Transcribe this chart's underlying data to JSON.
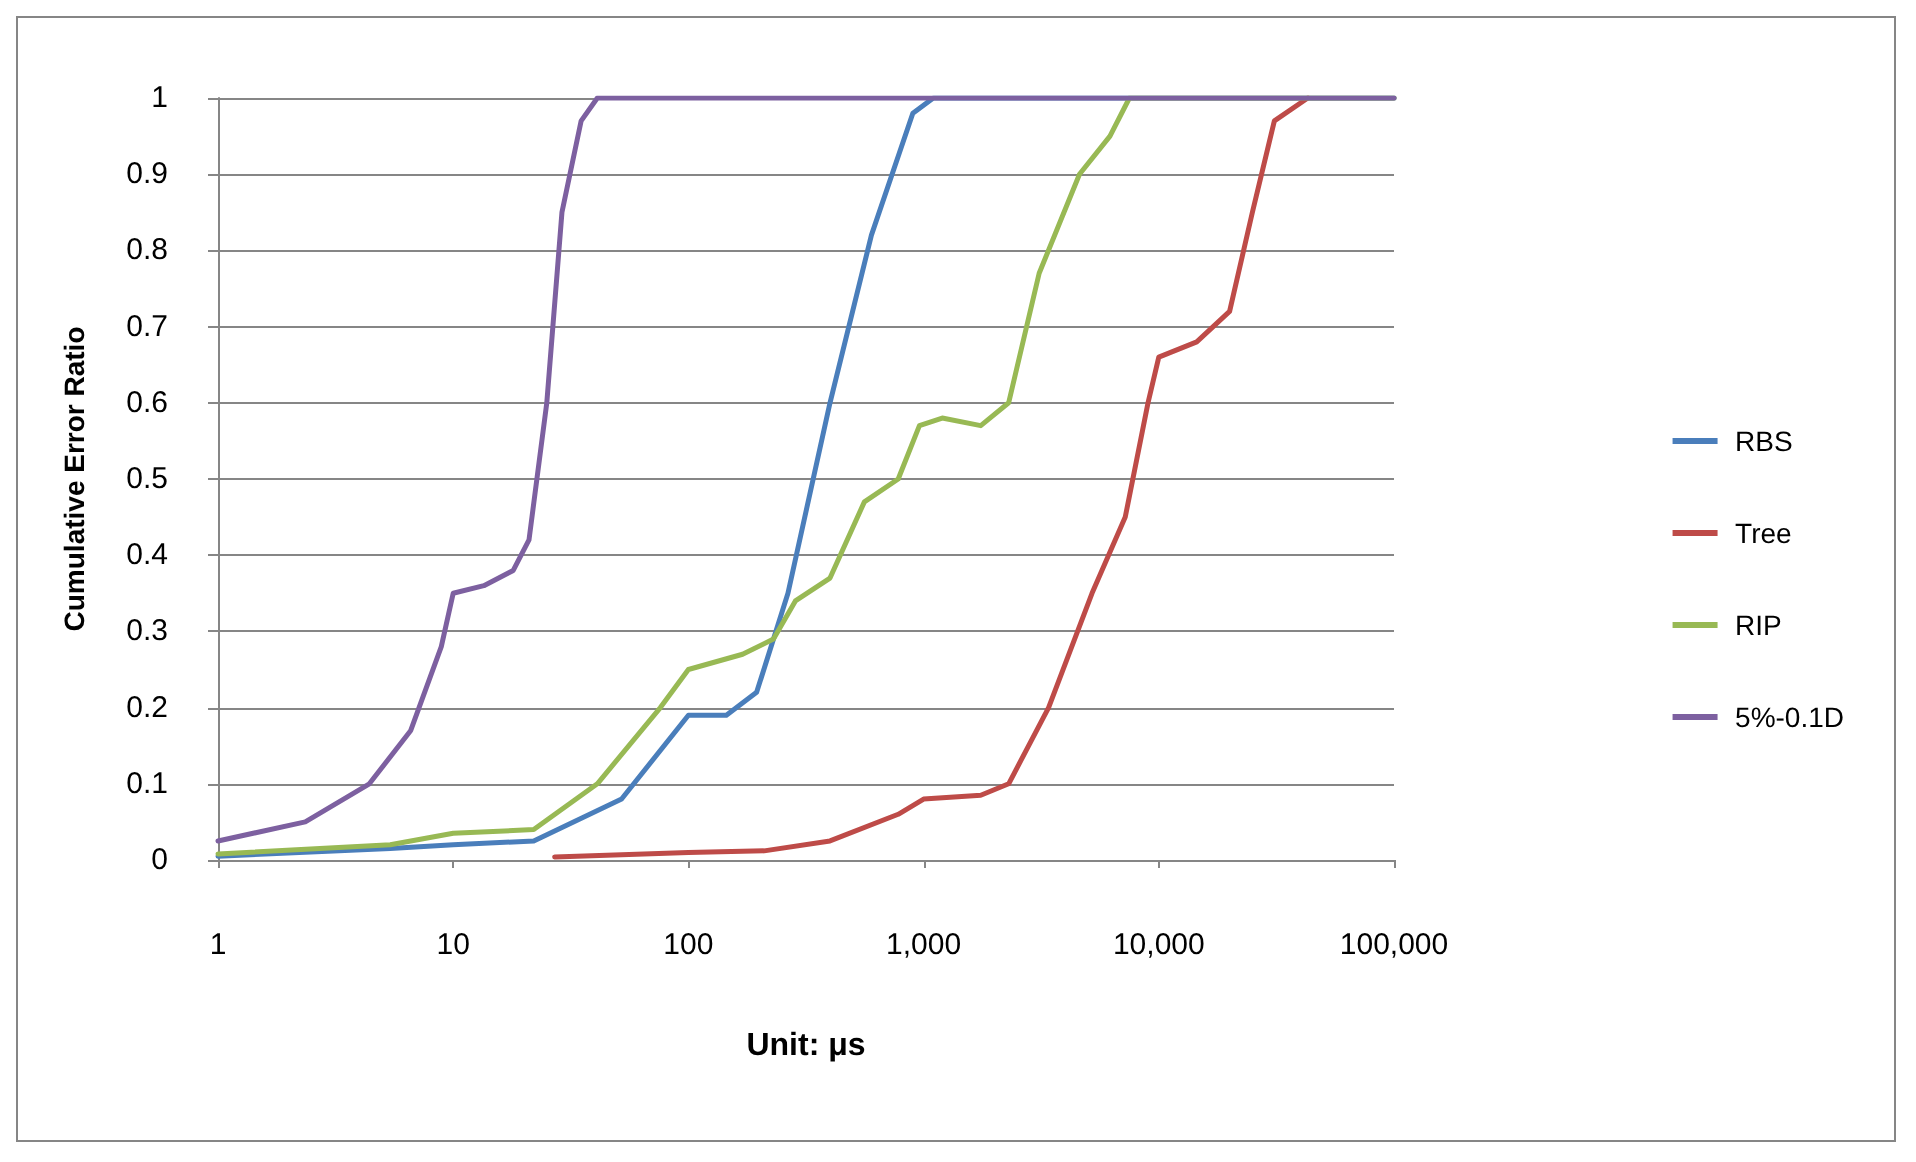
{
  "chart_data": {
    "type": "line",
    "xlabel": "Unit: μs",
    "ylabel": "Cumulative Error Ratio",
    "log": "x",
    "xlim": [
      1,
      100000
    ],
    "xticks": [
      1,
      10,
      100,
      {
        "value": 1000,
        "label": "1,000"
      },
      {
        "value": 10000,
        "label": "10,000"
      },
      {
        "value": 100000,
        "label": "100,000"
      }
    ],
    "ylim": [
      0,
      1
    ],
    "yticks": [
      0,
      0.1,
      0.2,
      0.3,
      0.4,
      0.5,
      0.6,
      0.7,
      0.8,
      0.9,
      1
    ],
    "grid": "y",
    "legend": "right",
    "marker": "none",
    "line_style": "solid",
    "series": [
      {
        "name": "RBS",
        "color": "#4a7ebb",
        "x": [
          1,
          5.4,
          10,
          22,
          52,
          100,
          145,
          195,
          265,
          400,
          600,
          900,
          1100,
          100000
        ],
        "values": [
          0.005,
          0.015,
          0.02,
          0.025,
          0.08,
          0.19,
          0.19,
          0.22,
          0.35,
          0.6,
          0.82,
          0.98,
          1,
          1
        ]
      },
      {
        "name": "Tree",
        "color": "#be4b48",
        "x": [
          27,
          100,
          210,
          400,
          780,
          1000,
          1750,
          2300,
          3400,
          5200,
          7200,
          9000,
          10000,
          14500,
          20000,
          25000,
          31000,
          43000
        ],
        "values": [
          0.004,
          0.01,
          0.012,
          0.025,
          0.06,
          0.08,
          0.085,
          0.1,
          0.2,
          0.35,
          0.45,
          0.6,
          0.66,
          0.68,
          0.72,
          0.85,
          0.97,
          1
        ]
      },
      {
        "name": "RIP",
        "color": "#98b954",
        "x": [
          1,
          5.4,
          10,
          22,
          41,
          76,
          100,
          170,
          230,
          285,
          400,
          560,
          780,
          960,
          1200,
          1750,
          2300,
          3100,
          4600,
          6200,
          7500,
          100000
        ],
        "values": [
          0.008,
          0.02,
          0.035,
          0.04,
          0.1,
          0.2,
          0.25,
          0.27,
          0.29,
          0.34,
          0.37,
          0.47,
          0.5,
          0.57,
          0.58,
          0.57,
          0.6,
          0.77,
          0.9,
          0.95,
          1,
          1
        ]
      },
      {
        "name": "5%-0.1D",
        "color": "#7d60a0",
        "x": [
          1,
          2.35,
          4.4,
          6.6,
          8.9,
          10,
          13.5,
          18,
          21,
          25,
          29,
          35,
          41,
          100000
        ],
        "values": [
          0.025,
          0.05,
          0.1,
          0.17,
          0.28,
          0.35,
          0.36,
          0.38,
          0.42,
          0.6,
          0.85,
          0.97,
          1,
          1
        ]
      }
    ]
  }
}
